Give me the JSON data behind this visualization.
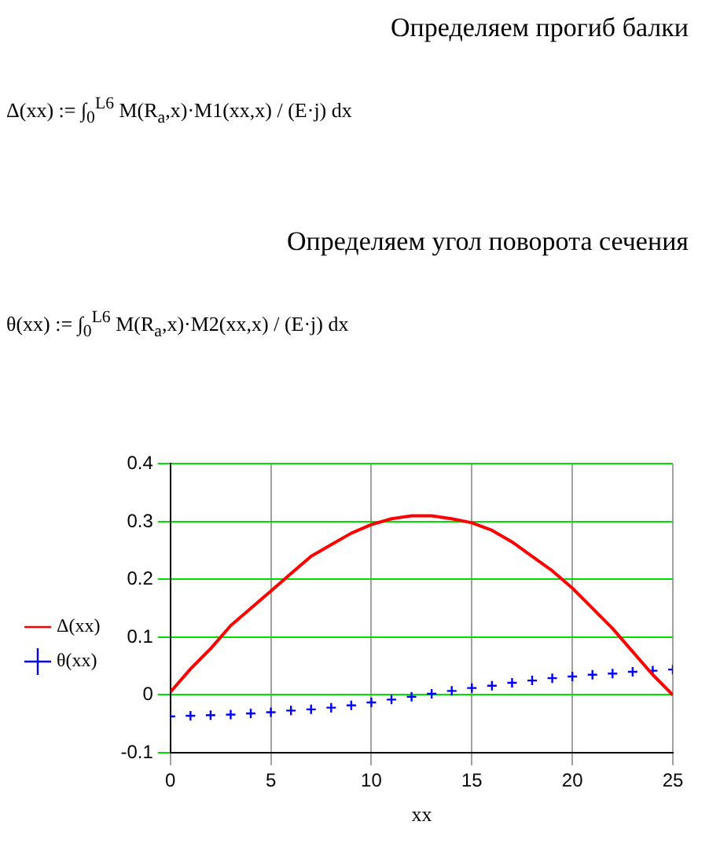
{
  "chart_data": {
    "type": "line",
    "annotations": [
      "Определяем прогиб балки",
      "Δ(xx) := ∫$_{0}$$^{L6}$ M(R$_{a}$,x)·M1(xx,x) / (E·j) dx",
      "Определяем угол поворота сечения",
      "θ(xx) := ∫$_{0}$$^{L6}$ M(R$_{a}$,x)·M2(xx,x) / (E·j) dx"
    ],
    "xlabel": "xx",
    "xlim": [
      0,
      25
    ],
    "xticks": [
      0,
      5,
      10,
      15,
      20,
      25
    ],
    "ylim": [
      -0.1,
      0.4
    ],
    "yticks": [
      -0.1,
      0,
      0.1,
      0.2,
      0.3,
      0.4
    ],
    "grid": true,
    "legend": "left",
    "series": [
      {
        "name": "Δ(xx)",
        "color": "#ff0000",
        "type": "line",
        "line_style": "solid",
        "marker": "none",
        "x": [
          0,
          1,
          2,
          3,
          4,
          5,
          6,
          7,
          8,
          9,
          10,
          11,
          12,
          13,
          14,
          15,
          16,
          17,
          18,
          19,
          20,
          21,
          22,
          23,
          24,
          25
        ],
        "values": [
          0.005,
          0.045,
          0.08,
          0.12,
          0.15,
          0.18,
          0.21,
          0.24,
          0.26,
          0.28,
          0.295,
          0.305,
          0.31,
          0.31,
          0.305,
          0.298,
          0.285,
          0.265,
          0.24,
          0.215,
          0.185,
          0.15,
          0.115,
          0.075,
          0.035,
          0
        ]
      },
      {
        "name": "θ(xx)",
        "color": "#0000ff",
        "type": "scatter",
        "marker": "cross",
        "x": [
          0,
          1,
          2,
          3,
          4,
          5,
          6,
          7,
          8,
          9,
          10,
          11,
          12,
          13,
          14,
          15,
          16,
          17,
          18,
          19,
          20,
          21,
          22,
          23,
          24,
          25
        ],
        "values": [
          -0.037,
          -0.036,
          -0.035,
          -0.034,
          -0.032,
          -0.03,
          -0.027,
          -0.025,
          -0.022,
          -0.018,
          -0.013,
          -0.008,
          -0.003,
          0.002,
          0.007,
          0.012,
          0.016,
          0.021,
          0.025,
          0.029,
          0.032,
          0.035,
          0.037,
          0.04,
          0.042,
          0.044
        ]
      }
    ]
  }
}
